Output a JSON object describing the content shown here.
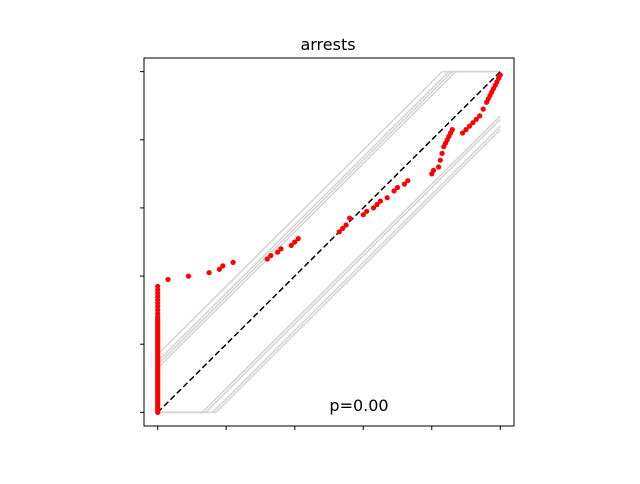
{
  "chart_data": {
    "type": "scatter",
    "title": "arrests",
    "xlabel": "",
    "ylabel": "",
    "xlim": [
      -0.04,
      1.04
    ],
    "ylim": [
      -0.04,
      1.04
    ],
    "x_ticks": [
      0,
      0.2,
      0.4,
      0.6,
      0.8,
      1.0
    ],
    "y_ticks": [
      0,
      0.2,
      0.4,
      0.6,
      0.8,
      1.0
    ],
    "tick_labels_visible": false,
    "grid": false,
    "annotation": "p=0.00",
    "colors": {
      "points": "#ff0000",
      "reference": "#000000",
      "bands": "#d3d3d3"
    },
    "reference_line": {
      "style": "dashed",
      "x": [
        0,
        1
      ],
      "y": [
        0,
        1
      ]
    },
    "envelope_lines": [
      {
        "x": [
          0,
          0.13,
          1.0
        ],
        "y": [
          0,
          0,
          0.87
        ]
      },
      {
        "x": [
          0,
          0.14,
          1.0
        ],
        "y": [
          0,
          0,
          0.86
        ]
      },
      {
        "x": [
          0,
          0.16,
          1.0
        ],
        "y": [
          0,
          0,
          0.84
        ]
      },
      {
        "x": [
          0,
          0.17,
          1.0
        ],
        "y": [
          0,
          0,
          0.83
        ]
      },
      {
        "x": [
          0,
          0.83,
          1.0
        ],
        "y": [
          0.17,
          1,
          1
        ]
      },
      {
        "x": [
          0,
          0.85,
          1.0
        ],
        "y": [
          0.15,
          1,
          1
        ]
      },
      {
        "x": [
          0,
          0.86,
          1.0
        ],
        "y": [
          0.14,
          1,
          1
        ]
      },
      {
        "x": [
          0,
          0.87,
          1.0
        ],
        "y": [
          0.13,
          1,
          1
        ]
      }
    ],
    "series": [
      {
        "x": [
          0,
          0,
          0,
          0,
          0,
          0,
          0,
          0,
          0,
          0,
          0,
          0,
          0,
          0,
          0,
          0,
          0,
          0,
          0,
          0,
          0,
          0,
          0,
          0,
          0,
          0,
          0,
          0,
          0,
          0,
          0,
          0,
          0,
          0,
          0,
          0,
          0,
          0,
          0,
          0,
          0,
          0,
          0,
          0,
          0,
          0,
          0,
          0,
          0,
          0,
          0,
          0,
          0,
          0,
          0,
          0,
          0,
          0,
          0,
          0,
          0,
          0,
          0,
          0,
          0,
          0,
          0.03,
          0.09,
          0.15,
          0.18,
          0.19,
          0.22,
          0.32,
          0.33,
          0.35,
          0.36,
          0.39,
          0.4,
          0.41,
          0.53,
          0.54,
          0.55,
          0.56,
          0.6,
          0.61,
          0.63,
          0.64,
          0.65,
          0.67,
          0.69,
          0.7,
          0.72,
          0.73,
          0.8,
          0.805,
          0.82,
          0.825,
          0.83,
          0.835,
          0.84,
          0.845,
          0.85,
          0.855,
          0.86,
          0.89,
          0.9,
          0.91,
          0.92,
          0.93,
          0.94,
          0.95,
          0.96,
          0.965,
          0.97,
          0.975,
          0.98,
          0.985,
          0.99,
          0.995,
          1.0
        ],
        "y": [
          0,
          0.01,
          0.02,
          0.03,
          0.04,
          0.05,
          0.06,
          0.07,
          0.08,
          0.09,
          0.1,
          0.11,
          0.12,
          0.13,
          0.14,
          0.15,
          0.16,
          0.17,
          0.18,
          0.19,
          0.2,
          0.21,
          0.22,
          0.23,
          0.24,
          0.25,
          0.26,
          0.27,
          0.28,
          0.29,
          0.3,
          0.31,
          0.32,
          0.33,
          0.34,
          0.35,
          0.36,
          0.37,
          0.005,
          0.015,
          0.025,
          0.035,
          0.045,
          0.055,
          0.065,
          0.075,
          0.085,
          0.095,
          0.105,
          0.115,
          0.125,
          0.135,
          0.145,
          0.155,
          0.165,
          0.175,
          0.185,
          0.195,
          0.205,
          0.215,
          0.225,
          0.235,
          0.245,
          0.255,
          0.265,
          0.275,
          0.39,
          0.4,
          0.41,
          0.42,
          0.43,
          0.44,
          0.45,
          0.46,
          0.47,
          0.48,
          0.49,
          0.5,
          0.51,
          0.53,
          0.54,
          0.55,
          0.57,
          0.58,
          0.59,
          0.6,
          0.61,
          0.62,
          0.63,
          0.65,
          0.66,
          0.67,
          0.68,
          0.7,
          0.71,
          0.72,
          0.74,
          0.76,
          0.78,
          0.79,
          0.8,
          0.81,
          0.82,
          0.83,
          0.82,
          0.83,
          0.84,
          0.85,
          0.86,
          0.87,
          0.89,
          0.91,
          0.92,
          0.93,
          0.94,
          0.95,
          0.96,
          0.97,
          0.98,
          0.99
        ]
      }
    ]
  }
}
